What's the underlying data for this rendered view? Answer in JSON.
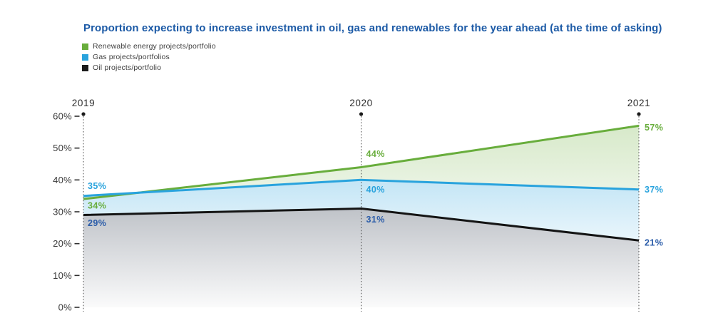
{
  "title": "Proportion expecting to increase investment in oil, gas and renewables for the year ahead (at the time of asking)",
  "colors": {
    "title": "#1c5aa6",
    "renewable": "#68ad3c",
    "gas": "#29a3dd",
    "oil_line": "#141414",
    "oil_label": "#2a5ca9",
    "axis_text": "#3a3a3a",
    "gridline": "#4a4a4a"
  },
  "legend": [
    {
      "label": "Renewable energy projects/portfolio",
      "color": "#68ad3c"
    },
    {
      "label": "Gas projects/portfolios",
      "color": "#29a3dd"
    },
    {
      "label": "Oil projects/portfolio",
      "color": "#1a1a1a"
    }
  ],
  "chart_data": {
    "type": "area",
    "title": "Proportion expecting to increase investment in oil, gas and renewables for the year ahead (at the time of asking)",
    "categories": [
      "2019",
      "2020",
      "2021"
    ],
    "series": [
      {
        "name": "Renewable energy projects/portfolio",
        "values": [
          34,
          44,
          57
        ],
        "color": "#68ad3c",
        "label_color": "#68ad3c",
        "fill_color": "#6fb03f"
      },
      {
        "name": "Gas projects/portfolios",
        "values": [
          35,
          40,
          37
        ],
        "color": "#29a3dd",
        "label_color": "#29a3dd",
        "fill_color": "#29a3dd"
      },
      {
        "name": "Oil projects/portfolio",
        "values": [
          29,
          31,
          21
        ],
        "color": "#141414",
        "label_color": "#2a5ca9",
        "fill_color": "#5f6876"
      }
    ],
    "y_ticks": [
      "0%",
      "10%",
      "20%",
      "30%",
      "40%",
      "50%",
      "60%"
    ],
    "y_tick_step": 10,
    "ylim": [
      0,
      60
    ],
    "value_suffix": "%",
    "xlabel": "",
    "ylabel": "",
    "grid": false,
    "legend_position": "top-left"
  }
}
